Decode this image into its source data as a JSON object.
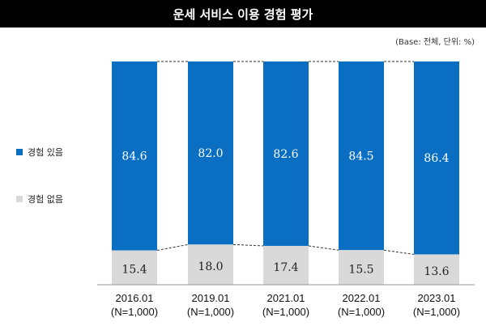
{
  "title": "운세 서비스 이용 경험 평가",
  "unit_note": "(Base: 전체, 단위: %)",
  "colors": {
    "experienced": "#0a6fc2",
    "not_experienced": "#d9d9d9",
    "title_bg": "#000000"
  },
  "chart_data": {
    "type": "bar",
    "stacked": true,
    "percent": true,
    "categories": [
      "2016.01",
      "2019.01",
      "2021.01",
      "2022.01",
      "2023.01"
    ],
    "category_sublabels": [
      "(N=1,000)",
      "(N=1,000)",
      "(N=1,000)",
      "(N=1,000)",
      "(N=1,000)"
    ],
    "series": [
      {
        "name": "경험 있음",
        "values": [
          84.6,
          82.0,
          82.6,
          84.5,
          86.4
        ]
      },
      {
        "name": "경험 없음",
        "values": [
          15.4,
          18.0,
          17.4,
          15.5,
          13.6
        ]
      }
    ],
    "value_labels": [
      [
        "84.6",
        "82.0",
        "82.6",
        "84.5",
        "86.4"
      ],
      [
        "15.4",
        "18.0",
        "17.4",
        "15.5",
        "13.6"
      ]
    ],
    "ylim": [
      0,
      100
    ],
    "legend_position": "left",
    "connector_lines": "dashed"
  }
}
